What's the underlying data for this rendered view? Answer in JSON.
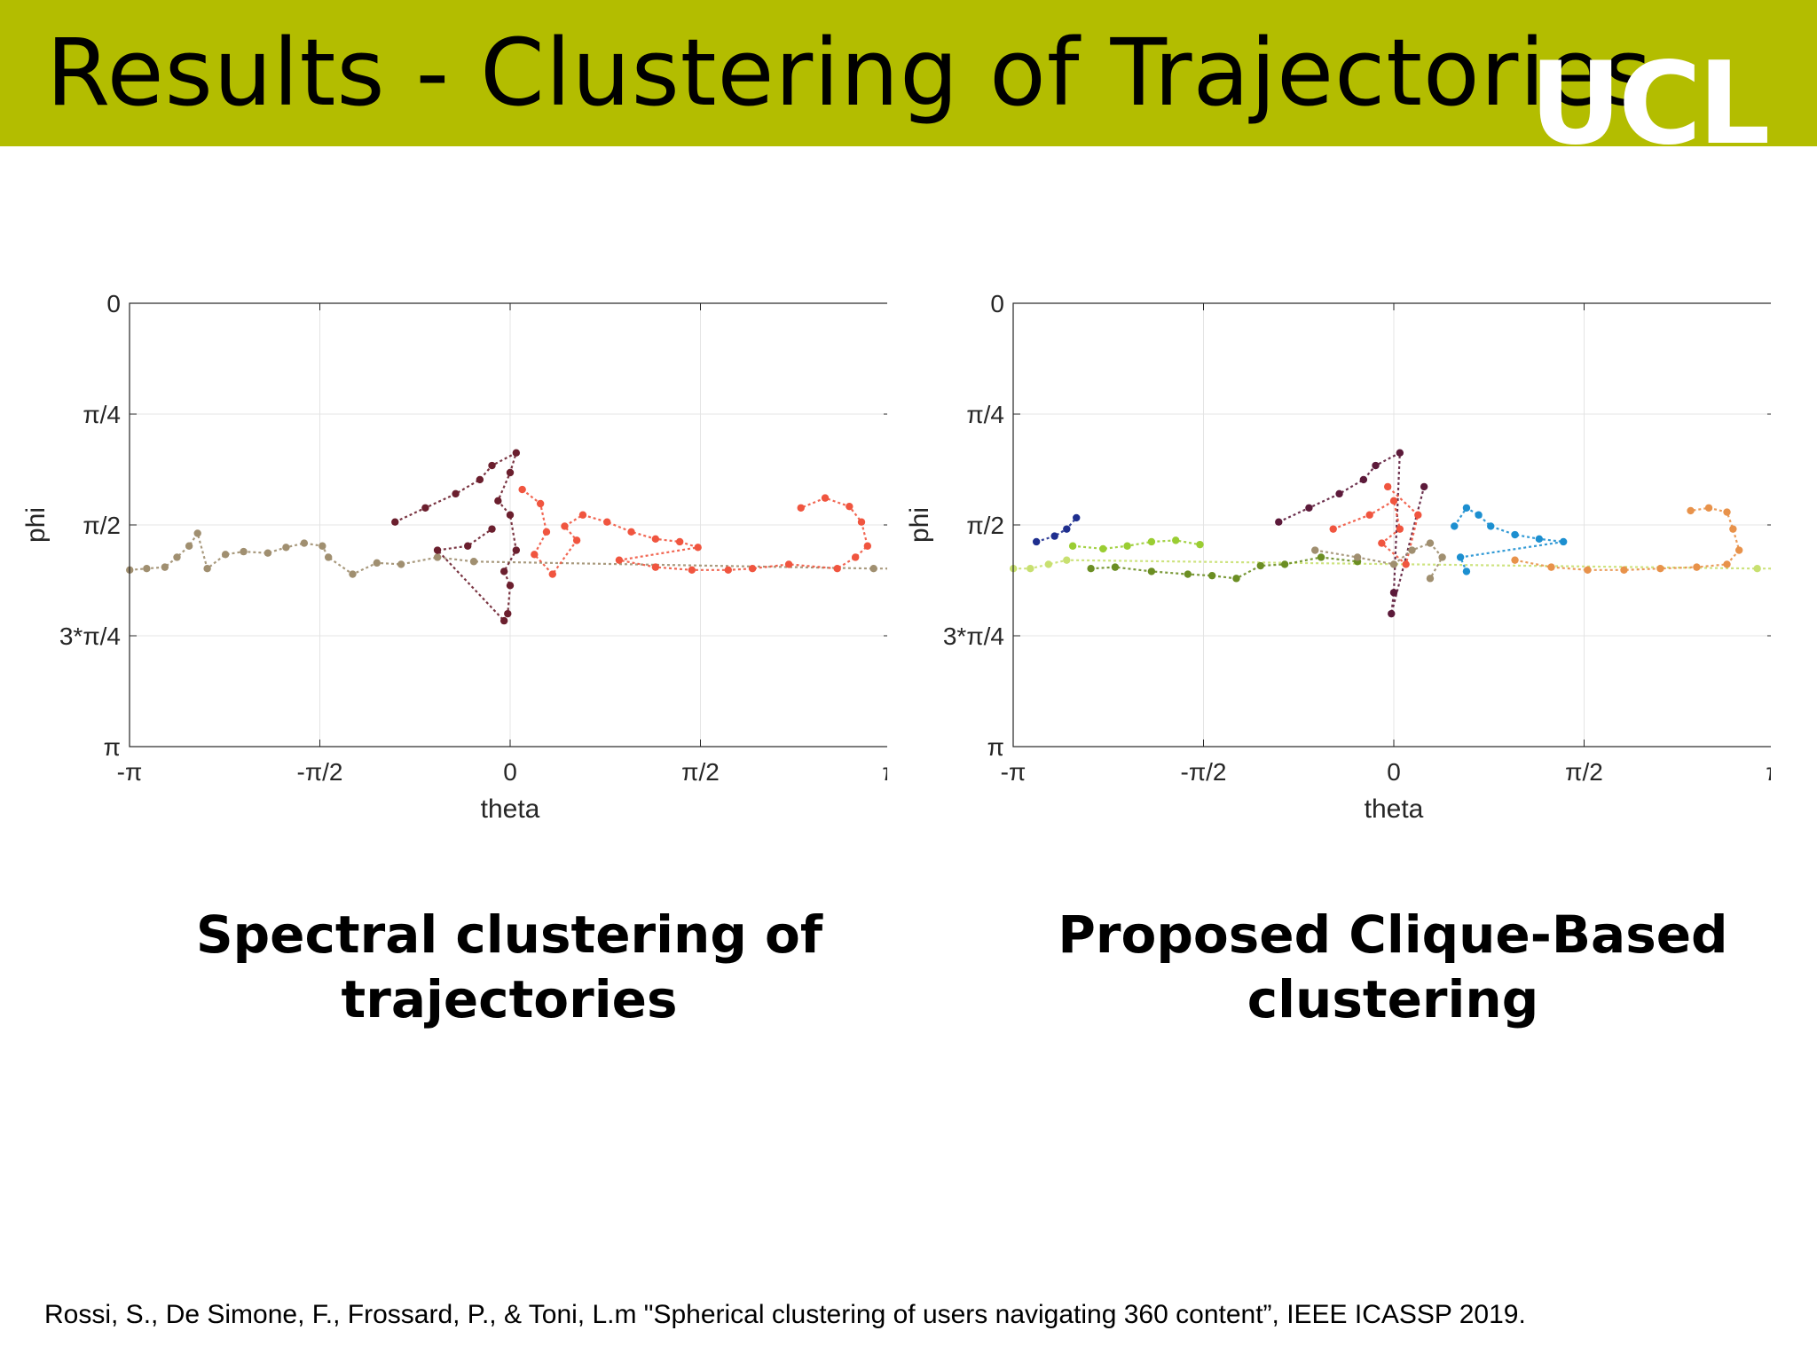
{
  "slide": {
    "title": "Results - Clustering of Trajectories",
    "logo_text": "UCL",
    "header_color": "#b3bd00",
    "captions": {
      "left": [
        "Spectral clustering of",
        "trajectories"
      ],
      "right": [
        "Proposed Clique-Based",
        "clustering"
      ]
    },
    "citation": "Rossi, S., De Simone, F., Frossard, P., & Toni, L.m \"Spherical clustering of users navigating 360 content”, IEEE ICASSP 2019."
  },
  "chart_data": [
    {
      "type": "scatter",
      "title": "",
      "xlabel": "theta",
      "ylabel": "phi",
      "xlim": [
        -3.1416,
        3.1416
      ],
      "ylim": [
        0,
        3.1416
      ],
      "y_reversed": true,
      "grid": true,
      "xticks": [
        -3.1416,
        -1.5708,
        0,
        1.5708,
        3.1416
      ],
      "xtick_labels": [
        "-π",
        "-π/2",
        "0",
        "π/2",
        "π"
      ],
      "yticks": [
        0,
        0.7854,
        1.5708,
        2.3562,
        3.1416
      ],
      "ytick_labels": [
        "0",
        "π/4",
        "π/2",
        "3*π/4",
        "π"
      ],
      "series": [
        {
          "color": "#a08f70",
          "points": [
            [
              -3.14,
              1.89
            ],
            [
              -3.0,
              1.88
            ],
            [
              -2.85,
              1.87
            ],
            [
              -2.75,
              1.8
            ],
            [
              -2.65,
              1.72
            ],
            [
              -2.58,
              1.63
            ],
            [
              -2.5,
              1.88
            ],
            [
              -2.35,
              1.78
            ],
            [
              -2.2,
              1.76
            ],
            [
              -2.0,
              1.77
            ],
            [
              -1.85,
              1.73
            ],
            [
              -1.7,
              1.7
            ],
            [
              -1.55,
              1.72
            ],
            [
              -1.5,
              1.8
            ],
            [
              -1.3,
              1.92
            ],
            [
              -1.1,
              1.84
            ],
            [
              -0.9,
              1.85
            ],
            [
              -0.6,
              1.8
            ],
            [
              -0.3,
              1.83
            ],
            [
              3.0,
              1.88
            ],
            [
              3.14,
              1.88
            ]
          ]
        },
        {
          "color": "#6b1f2e",
          "points": [
            [
              -0.95,
              1.55
            ],
            [
              -0.7,
              1.45
            ],
            [
              -0.45,
              1.35
            ],
            [
              -0.25,
              1.25
            ],
            [
              -0.15,
              1.15
            ],
            [
              0.05,
              1.06
            ],
            [
              0.0,
              1.2
            ],
            [
              -0.1,
              1.4
            ],
            [
              0.0,
              1.5
            ],
            [
              0.05,
              1.75
            ],
            [
              -0.05,
              1.9
            ],
            [
              0.0,
              2.0
            ],
            [
              -0.02,
              2.2
            ],
            [
              -0.05,
              2.25
            ],
            [
              -0.6,
              1.75
            ],
            [
              -0.35,
              1.72
            ],
            [
              -0.15,
              1.6
            ]
          ]
        },
        {
          "color": "#f0553f",
          "points": [
            [
              0.1,
              1.32
            ],
            [
              0.25,
              1.42
            ],
            [
              0.3,
              1.62
            ],
            [
              0.2,
              1.78
            ],
            [
              0.35,
              1.92
            ],
            [
              0.55,
              1.68
            ],
            [
              0.45,
              1.58
            ],
            [
              0.6,
              1.5
            ],
            [
              0.8,
              1.55
            ],
            [
              1.0,
              1.62
            ],
            [
              1.2,
              1.67
            ],
            [
              1.4,
              1.69
            ],
            [
              1.55,
              1.73
            ],
            [
              0.9,
              1.82
            ],
            [
              1.2,
              1.87
            ],
            [
              1.5,
              1.89
            ],
            [
              1.8,
              1.89
            ],
            [
              2.0,
              1.88
            ],
            [
              2.3,
              1.85
            ],
            [
              2.7,
              1.88
            ],
            [
              2.85,
              1.8
            ],
            [
              2.95,
              1.72
            ],
            [
              2.9,
              1.55
            ],
            [
              2.8,
              1.44
            ],
            [
              2.6,
              1.38
            ],
            [
              2.4,
              1.45
            ]
          ]
        }
      ]
    },
    {
      "type": "scatter",
      "title": "",
      "xlabel": "theta",
      "ylabel": "phi",
      "xlim": [
        -3.1416,
        3.1416
      ],
      "ylim": [
        0,
        3.1416
      ],
      "y_reversed": true,
      "grid": true,
      "xticks": [
        -3.1416,
        -1.5708,
        0,
        1.5708,
        3.1416
      ],
      "xtick_labels": [
        "-π",
        "-π/2",
        "0",
        "π/2",
        "π"
      ],
      "yticks": [
        0,
        0.7854,
        1.5708,
        2.3562,
        3.1416
      ],
      "ytick_labels": [
        "0",
        "π/4",
        "π/2",
        "3*π/4",
        "π"
      ],
      "series": [
        {
          "color": "#c8e070",
          "points": [
            [
              -3.14,
              1.88
            ],
            [
              -3.0,
              1.88
            ],
            [
              -2.85,
              1.85
            ],
            [
              -2.7,
              1.82
            ],
            [
              3.0,
              1.88
            ],
            [
              3.14,
              1.88
            ]
          ]
        },
        {
          "color": "#9acd32",
          "points": [
            [
              -2.65,
              1.72
            ],
            [
              -2.4,
              1.74
            ],
            [
              -2.2,
              1.72
            ],
            [
              -2.0,
              1.69
            ],
            [
              -1.8,
              1.68
            ],
            [
              -1.6,
              1.71
            ]
          ]
        },
        {
          "color": "#1f2f8f",
          "points": [
            [
              -2.95,
              1.69
            ],
            [
              -2.8,
              1.65
            ],
            [
              -2.7,
              1.6
            ],
            [
              -2.62,
              1.52
            ]
          ]
        },
        {
          "color": "#6b8e23",
          "points": [
            [
              -2.5,
              1.88
            ],
            [
              -2.3,
              1.87
            ],
            [
              -2.0,
              1.9
            ],
            [
              -1.7,
              1.92
            ],
            [
              -1.5,
              1.93
            ],
            [
              -1.3,
              1.95
            ],
            [
              -1.1,
              1.86
            ],
            [
              -0.9,
              1.85
            ],
            [
              -0.6,
              1.8
            ],
            [
              -0.3,
              1.83
            ]
          ]
        },
        {
          "color": "#5c1a3a",
          "points": [
            [
              -0.95,
              1.55
            ],
            [
              -0.7,
              1.45
            ],
            [
              -0.45,
              1.35
            ],
            [
              -0.25,
              1.25
            ],
            [
              -0.15,
              1.15
            ],
            [
              0.05,
              1.06
            ],
            [
              0.0,
              2.05
            ],
            [
              -0.02,
              2.2
            ],
            [
              0.25,
              1.3
            ]
          ]
        },
        {
          "color": "#f0553f",
          "points": [
            [
              -0.5,
              1.6
            ],
            [
              -0.2,
              1.5
            ],
            [
              0.0,
              1.4
            ],
            [
              0.05,
              1.6
            ],
            [
              -0.1,
              1.7
            ],
            [
              0.1,
              1.85
            ],
            [
              0.2,
              1.5
            ],
            [
              -0.05,
              1.3
            ]
          ]
        },
        {
          "color": "#a08f70",
          "points": [
            [
              -0.65,
              1.75
            ],
            [
              -0.3,
              1.8
            ],
            [
              0.0,
              1.85
            ],
            [
              0.15,
              1.75
            ],
            [
              0.3,
              1.7
            ],
            [
              0.4,
              1.8
            ],
            [
              0.3,
              1.95
            ]
          ]
        },
        {
          "color": "#1c8fd0",
          "points": [
            [
              0.5,
              1.58
            ],
            [
              0.6,
              1.45
            ],
            [
              0.7,
              1.5
            ],
            [
              0.8,
              1.58
            ],
            [
              1.0,
              1.64
            ],
            [
              1.2,
              1.67
            ],
            [
              1.4,
              1.69
            ],
            [
              0.55,
              1.8
            ],
            [
              0.6,
              1.9
            ]
          ]
        },
        {
          "color": "#e8924a",
          "points": [
            [
              1.0,
              1.82
            ],
            [
              1.3,
              1.87
            ],
            [
              1.6,
              1.89
            ],
            [
              1.9,
              1.89
            ],
            [
              2.2,
              1.88
            ],
            [
              2.5,
              1.87
            ],
            [
              2.75,
              1.85
            ],
            [
              2.85,
              1.75
            ],
            [
              2.8,
              1.6
            ],
            [
              2.75,
              1.48
            ],
            [
              2.6,
              1.45
            ],
            [
              2.45,
              1.47
            ]
          ]
        }
      ]
    }
  ]
}
